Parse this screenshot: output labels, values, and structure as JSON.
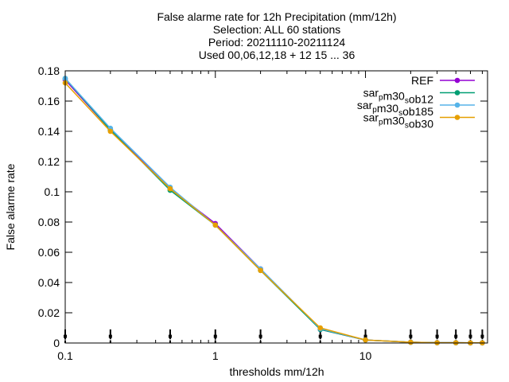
{
  "chart_data": {
    "type": "line",
    "title_lines": [
      "False alarme rate  for 12h Precipitation (mm/12h)",
      "Selection: ALL     60 stations",
      "Period: 20211110-20211124",
      "Used 00,06,12,18 + 12 15 ... 36"
    ],
    "xlabel": "thresholds mm/12h",
    "ylabel": "False alarme rate",
    "x_scale": "log",
    "xlim": [
      0.1,
      65
    ],
    "ylim": [
      0,
      0.18
    ],
    "x_ticks": [
      {
        "value": 0.1,
        "label": "0.1"
      },
      {
        "value": 1,
        "label": "1"
      },
      {
        "value": 10,
        "label": "10"
      }
    ],
    "y_ticks": [
      {
        "value": 0,
        "label": "0"
      },
      {
        "value": 0.02,
        "label": "0.02"
      },
      {
        "value": 0.04,
        "label": "0.04"
      },
      {
        "value": 0.06,
        "label": "0.06"
      },
      {
        "value": 0.08,
        "label": "0.08"
      },
      {
        "value": 0.1,
        "label": "0.1"
      },
      {
        "value": 0.12,
        "label": "0.12"
      },
      {
        "value": 0.14,
        "label": "0.14"
      },
      {
        "value": 0.16,
        "label": "0.16"
      },
      {
        "value": 0.18,
        "label": "0.18"
      }
    ],
    "x": [
      0.1,
      0.2,
      0.5,
      1,
      2,
      5,
      10,
      20,
      30,
      40,
      50,
      60
    ],
    "series": [
      {
        "name": "REF",
        "name_parts": [
          [
            "REF",
            ""
          ]
        ],
        "color": "#9400d3",
        "values": [
          0.174,
          0.141,
          0.102,
          0.079,
          0.049,
          0.009,
          0.002,
          0.0005,
          0.0002,
          0.0002,
          0.0001,
          0.0001
        ]
      },
      {
        "name": "sar_p m30_s ob12",
        "name_parts": [
          [
            "sar",
            ""
          ],
          [
            "p",
            "sub"
          ],
          [
            "m30",
            ""
          ],
          [
            "s",
            "sub"
          ],
          [
            "ob12",
            ""
          ]
        ],
        "color": "#009e73",
        "values": [
          0.175,
          0.141,
          0.101,
          0.078,
          0.048,
          0.009,
          0.002,
          0.0005,
          0.0002,
          0.0002,
          0.0001,
          0.0001
        ]
      },
      {
        "name": "sar_p m30_s ob185",
        "name_parts": [
          [
            "sar",
            ""
          ],
          [
            "p",
            "sub"
          ],
          [
            "m30",
            ""
          ],
          [
            "s",
            "sub"
          ],
          [
            "ob185",
            ""
          ]
        ],
        "color": "#56b4e9",
        "values": [
          0.175,
          0.142,
          0.103,
          0.078,
          0.049,
          0.0095,
          0.002,
          0.0005,
          0.0002,
          0.0002,
          0.0001,
          0.0001
        ]
      },
      {
        "name": "sar_p m30_s ob30",
        "name_parts": [
          [
            "sar",
            ""
          ],
          [
            "p",
            "sub"
          ],
          [
            "m30",
            ""
          ],
          [
            "s",
            "sub"
          ],
          [
            "ob30",
            ""
          ]
        ],
        "color": "#e69f00",
        "values": [
          0.172,
          0.14,
          0.102,
          0.078,
          0.048,
          0.01,
          0.002,
          0.0005,
          0.0002,
          0.0002,
          0.0001,
          0.0001
        ]
      }
    ],
    "legend_position": "top-right",
    "grid": false
  }
}
